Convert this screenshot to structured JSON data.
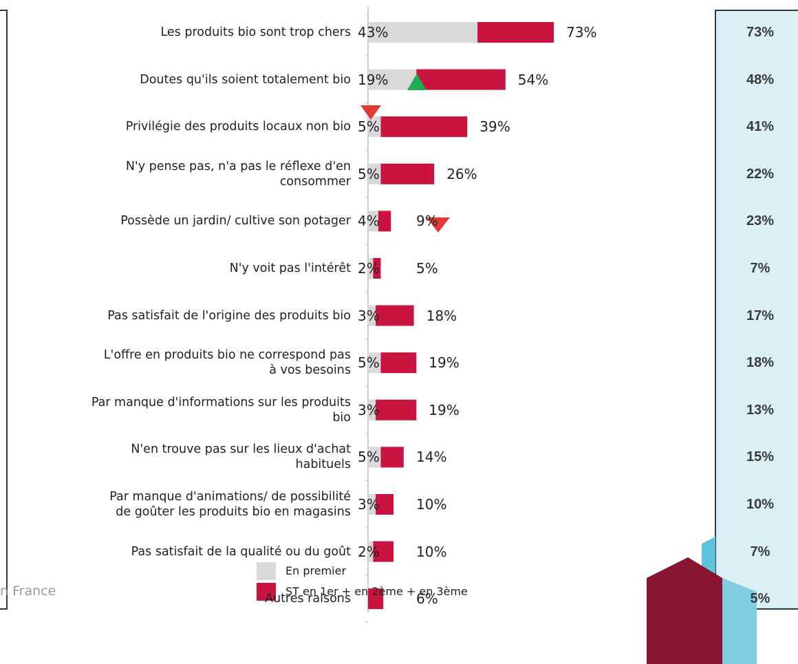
{
  "chart_data": {
    "type": "bar",
    "categories": [
      "Les produits bio sont trop chers",
      "Doutes qu'ils soient totalement bio",
      "Privilégie des produits locaux non bio",
      "N'y pense pas, n'a pas le réflexe d'en\nconsommer",
      "Possède un jardin/ cultive son potager",
      "N'y voit pas l'intérêt",
      "Pas satisfait de l'origine des produits bio",
      "L'offre en produits bio ne correspond pas\nà vos besoins",
      "Par manque d'informations sur les produits\nbio",
      "N'en trouve pas sur les lieux d'achat\nhabituels",
      "Par manque d'animations/ de possibilité\nde goûter les produits bio en magasins",
      "Pas satisfait de la qualité ou du goût",
      "Autres raisons"
    ],
    "series": [
      {
        "name": "En premier",
        "color": "#d9d9d9",
        "values": [
          43,
          19,
          5,
          5,
          4,
          2,
          3,
          5,
          3,
          5,
          3,
          2,
          null
        ],
        "value_labels": [
          "43%",
          "19%",
          "5%",
          "5%",
          "4%",
          "2%",
          "3%",
          "5%",
          "3%",
          "5%",
          "3%",
          "2%",
          null
        ]
      },
      {
        "name": "ST en 1er + en 2ème + en 3ème",
        "color": "#c8143f",
        "values": [
          73,
          54,
          39,
          26,
          9,
          5,
          18,
          19,
          19,
          14,
          10,
          10,
          6
        ],
        "value_labels": [
          "73%",
          "54%",
          "39%",
          "26%",
          "9%",
          "5%",
          "18%",
          "19%",
          "19%",
          "14%",
          "10%",
          "10%",
          "6%"
        ]
      }
    ],
    "side_values": [
      73,
      48,
      41,
      22,
      23,
      7,
      17,
      18,
      13,
      15,
      10,
      7,
      5
    ],
    "side_value_labels": [
      "73%",
      "48%",
      "41%",
      "22%",
      "23%",
      "7%",
      "17%",
      "18%",
      "13%",
      "15%",
      "10%",
      "7%",
      "5%"
    ],
    "xlim": [
      0,
      100
    ],
    "footer": "n France"
  }
}
